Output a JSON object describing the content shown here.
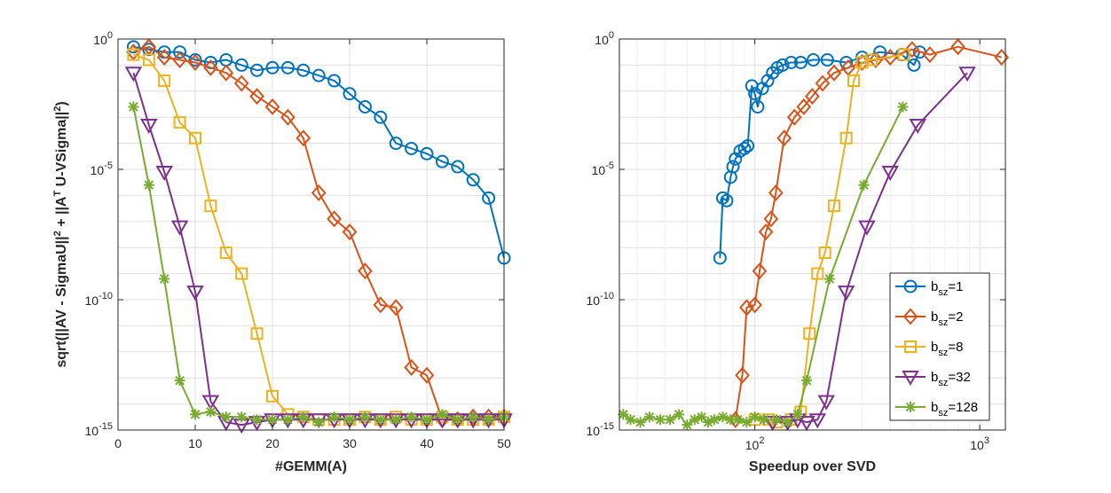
{
  "chart_data": [
    {
      "type": "line",
      "xlabel": "#GEMM(A)",
      "ylabel": "sqrt(||AV - SigmaU||^2 + ||A^T U-VSigma||^2)",
      "xscale": "linear",
      "yscale": "log",
      "xlim": [
        0,
        50
      ],
      "ylim": [
        1e-15,
        1
      ],
      "xticks": [
        0,
        10,
        20,
        30,
        40,
        50
      ],
      "yticks": [
        1e-15,
        1e-10,
        1e-05,
        1
      ],
      "grid": true,
      "series": [
        {
          "name": "b_sz=1",
          "color": "#0072BD",
          "marker": "circle",
          "points": [
            [
              2,
              -0.3
            ],
            [
              4,
              -0.4
            ],
            [
              6,
              -0.5
            ],
            [
              8,
              -0.5
            ],
            [
              10,
              -0.8
            ],
            [
              12,
              -0.9
            ],
            [
              14,
              -0.8
            ],
            [
              16,
              -1.0
            ],
            [
              18,
              -1.2
            ],
            [
              20,
              -1.1
            ],
            [
              22,
              -1.1
            ],
            [
              24,
              -1.2
            ],
            [
              26,
              -1.4
            ],
            [
              28,
              -1.6
            ],
            [
              30,
              -2.1
            ],
            [
              32,
              -2.6
            ],
            [
              34,
              -3.0
            ],
            [
              36,
              -4.0
            ],
            [
              38,
              -4.2
            ],
            [
              40,
              -4.4
            ],
            [
              42,
              -4.7
            ],
            [
              44,
              -4.9
            ],
            [
              46,
              -5.4
            ],
            [
              48,
              -6.1
            ],
            [
              50,
              -8.4
            ]
          ]
        },
        {
          "name": "b_sz=2",
          "color": "#D95319",
          "marker": "diamond",
          "points": [
            [
              2,
              -0.5
            ],
            [
              4,
              -0.3
            ],
            [
              6,
              -0.7
            ],
            [
              8,
              -0.8
            ],
            [
              10,
              -0.9
            ],
            [
              12,
              -1.1
            ],
            [
              14,
              -1.3
            ],
            [
              16,
              -1.7
            ],
            [
              18,
              -2.2
            ],
            [
              20,
              -2.6
            ],
            [
              22,
              -3.0
            ],
            [
              24,
              -3.8
            ],
            [
              26,
              -5.9
            ],
            [
              28,
              -6.9
            ],
            [
              30,
              -7.4
            ],
            [
              32,
              -8.9
            ],
            [
              34,
              -10.2
            ],
            [
              36,
              -10.3
            ],
            [
              38,
              -12.6
            ],
            [
              40,
              -12.9
            ],
            [
              42,
              -14.6
            ],
            [
              44,
              -14.6
            ],
            [
              46,
              -14.5
            ],
            [
              48,
              -14.5
            ],
            [
              50,
              -14.5
            ]
          ]
        },
        {
          "name": "b_sz=8",
          "color": "#EDB120",
          "marker": "square",
          "points": [
            [
              2,
              -0.6
            ],
            [
              4,
              -0.8
            ],
            [
              6,
              -1.6
            ],
            [
              8,
              -3.2
            ],
            [
              10,
              -3.8
            ],
            [
              12,
              -6.4
            ],
            [
              14,
              -8.2
            ],
            [
              16,
              -9.0
            ],
            [
              18,
              -11.3
            ],
            [
              20,
              -13.7
            ],
            [
              22,
              -14.4
            ],
            [
              24,
              -14.5
            ],
            [
              26,
              -14.6
            ],
            [
              28,
              -14.6
            ],
            [
              30,
              -14.6
            ],
            [
              32,
              -14.5
            ],
            [
              34,
              -14.6
            ],
            [
              36,
              -14.5
            ],
            [
              38,
              -14.6
            ],
            [
              40,
              -14.6
            ],
            [
              42,
              -14.5
            ],
            [
              44,
              -14.6
            ],
            [
              46,
              -14.6
            ],
            [
              48,
              -14.6
            ],
            [
              50,
              -14.5
            ]
          ]
        },
        {
          "name": "b_sz=32",
          "color": "#7E2F8E",
          "marker": "triangle-down",
          "points": [
            [
              2,
              -1.3
            ],
            [
              4,
              -3.3
            ],
            [
              6,
              -5.1
            ],
            [
              8,
              -7.2
            ],
            [
              10,
              -9.7
            ],
            [
              12,
              -13.9
            ],
            [
              14,
              -14.7
            ],
            [
              16,
              -14.8
            ],
            [
              18,
              -14.7
            ],
            [
              20,
              -14.6
            ],
            [
              22,
              -14.6
            ],
            [
              24,
              -14.6
            ],
            [
              26,
              -14.6
            ],
            [
              28,
              -14.6
            ],
            [
              30,
              -14.6
            ],
            [
              32,
              -14.6
            ],
            [
              34,
              -14.6
            ],
            [
              36,
              -14.6
            ],
            [
              38,
              -14.6
            ],
            [
              40,
              -14.6
            ],
            [
              42,
              -14.6
            ],
            [
              44,
              -14.6
            ],
            [
              46,
              -14.6
            ],
            [
              48,
              -14.6
            ],
            [
              50,
              -14.6
            ]
          ]
        },
        {
          "name": "b_sz=128",
          "color": "#77AC30",
          "marker": "asterisk",
          "points": [
            [
              2,
              -2.6
            ],
            [
              4,
              -5.6
            ],
            [
              6,
              -9.2
            ],
            [
              8,
              -13.1
            ],
            [
              10,
              -14.4
            ],
            [
              12,
              -14.3
            ],
            [
              14,
              -14.5
            ],
            [
              16,
              -14.5
            ],
            [
              18,
              -14.6
            ],
            [
              20,
              -14.6
            ],
            [
              22,
              -14.6
            ],
            [
              24,
              -14.5
            ],
            [
              26,
              -14.7
            ],
            [
              28,
              -14.5
            ],
            [
              30,
              -14.6
            ],
            [
              32,
              -14.5
            ],
            [
              34,
              -14.6
            ],
            [
              36,
              -14.6
            ],
            [
              38,
              -14.5
            ],
            [
              40,
              -14.6
            ],
            [
              42,
              -14.4
            ],
            [
              44,
              -14.6
            ],
            [
              46,
              -14.5
            ],
            [
              48,
              -14.6
            ],
            [
              50,
              -14.5
            ]
          ]
        }
      ]
    },
    {
      "type": "line",
      "xlabel": "Speedup over SVD",
      "ylabel": "",
      "xscale": "log",
      "yscale": "log",
      "xlim": [
        25,
        1300
      ],
      "ylim": [
        1e-15,
        1
      ],
      "xticks": [
        100,
        1000
      ],
      "yticks": [
        1e-15,
        1e-10,
        1e-05,
        1
      ],
      "grid": true,
      "legend": "lower-right",
      "series": [
        {
          "name": "b_sz=1",
          "color": "#0072BD",
          "marker": "circle",
          "points": [
            [
              70,
              -8.4
            ],
            [
              72,
              -6.1
            ],
            [
              75,
              -6.2
            ],
            [
              78,
              -5.3
            ],
            [
              80,
              -4.9
            ],
            [
              82,
              -4.6
            ],
            [
              86,
              -4.3
            ],
            [
              90,
              -4.2
            ],
            [
              93,
              -4.1
            ],
            [
              97,
              -1.8
            ],
            [
              100,
              -2.1
            ],
            [
              103,
              -2.6
            ],
            [
              108,
              -1.9
            ],
            [
              114,
              -1.6
            ],
            [
              120,
              -1.3
            ],
            [
              126,
              -1.1
            ],
            [
              133,
              -1.0
            ],
            [
              145,
              -0.9
            ],
            [
              160,
              -0.9
            ],
            [
              182,
              -0.8
            ],
            [
              210,
              -0.8
            ],
            [
              255,
              -0.9
            ],
            [
              300,
              -0.7
            ],
            [
              360,
              -0.5
            ],
            [
              450,
              -0.6
            ],
            [
              510,
              -1.0
            ],
            [
              540,
              -0.5
            ]
          ]
        },
        {
          "name": "b_sz=2",
          "color": "#D95319",
          "marker": "diamond",
          "points": [
            [
              82,
              -14.6
            ],
            [
              88,
              -12.9
            ],
            [
              92,
              -10.3
            ],
            [
              100,
              -10.2
            ],
            [
              105,
              -8.9
            ],
            [
              112,
              -7.4
            ],
            [
              118,
              -6.9
            ],
            [
              124,
              -5.9
            ],
            [
              135,
              -3.8
            ],
            [
              150,
              -3.0
            ],
            [
              165,
              -2.6
            ],
            [
              180,
              -2.2
            ],
            [
              200,
              -1.7
            ],
            [
              225,
              -1.3
            ],
            [
              260,
              -1.1
            ],
            [
              300,
              -0.9
            ],
            [
              345,
              -0.8
            ],
            [
              400,
              -0.7
            ],
            [
              500,
              -0.4
            ],
            [
              600,
              -0.6
            ],
            [
              800,
              -0.3
            ],
            [
              1250,
              -0.7
            ]
          ]
        },
        {
          "name": "b_sz=8",
          "color": "#EDB120",
          "marker": "square",
          "points": [
            [
              100,
              -14.6
            ],
            [
              115,
              -14.6
            ],
            [
              125,
              -14.7
            ],
            [
              145,
              -14.6
            ],
            [
              160,
              -14.3
            ],
            [
              175,
              -11.3
            ],
            [
              190,
              -9.0
            ],
            [
              205,
              -8.2
            ],
            [
              225,
              -6.4
            ],
            [
              255,
              -3.8
            ],
            [
              275,
              -1.6
            ],
            [
              300,
              -0.9
            ],
            [
              330,
              -0.8
            ],
            [
              460,
              -0.6
            ]
          ]
        },
        {
          "name": "b_sz=32",
          "color": "#7E2F8E",
          "marker": "triangle-down",
          "points": [
            [
              120,
              -14.7
            ],
            [
              140,
              -14.7
            ],
            [
              155,
              -14.6
            ],
            [
              170,
              -14.7
            ],
            [
              190,
              -14.6
            ],
            [
              208,
              -13.9
            ],
            [
              255,
              -9.7
            ],
            [
              315,
              -7.2
            ],
            [
              400,
              -5.1
            ],
            [
              530,
              -3.3
            ],
            [
              880,
              -1.3
            ]
          ]
        },
        {
          "name": "b_sz=128",
          "color": "#77AC30",
          "marker": "asterisk",
          "points": [
            [
              26,
              -14.4
            ],
            [
              28,
              -14.6
            ],
            [
              31,
              -14.7
            ],
            [
              34,
              -14.5
            ],
            [
              38,
              -14.6
            ],
            [
              42,
              -14.6
            ],
            [
              46,
              -14.4
            ],
            [
              50,
              -14.8
            ],
            [
              54,
              -14.6
            ],
            [
              58,
              -14.5
            ],
            [
              62,
              -14.7
            ],
            [
              66,
              -14.6
            ],
            [
              72,
              -14.5
            ],
            [
              78,
              -14.6
            ],
            [
              84,
              -14.6
            ],
            [
              92,
              -14.7
            ],
            [
              100,
              -14.5
            ],
            [
              110,
              -14.6
            ],
            [
              125,
              -14.6
            ],
            [
              140,
              -14.7
            ],
            [
              155,
              -14.4
            ],
            [
              170,
              -13.1
            ],
            [
              215,
              -9.2
            ],
            [
              305,
              -5.6
            ],
            [
              455,
              -2.6
            ]
          ]
        }
      ]
    }
  ]
}
